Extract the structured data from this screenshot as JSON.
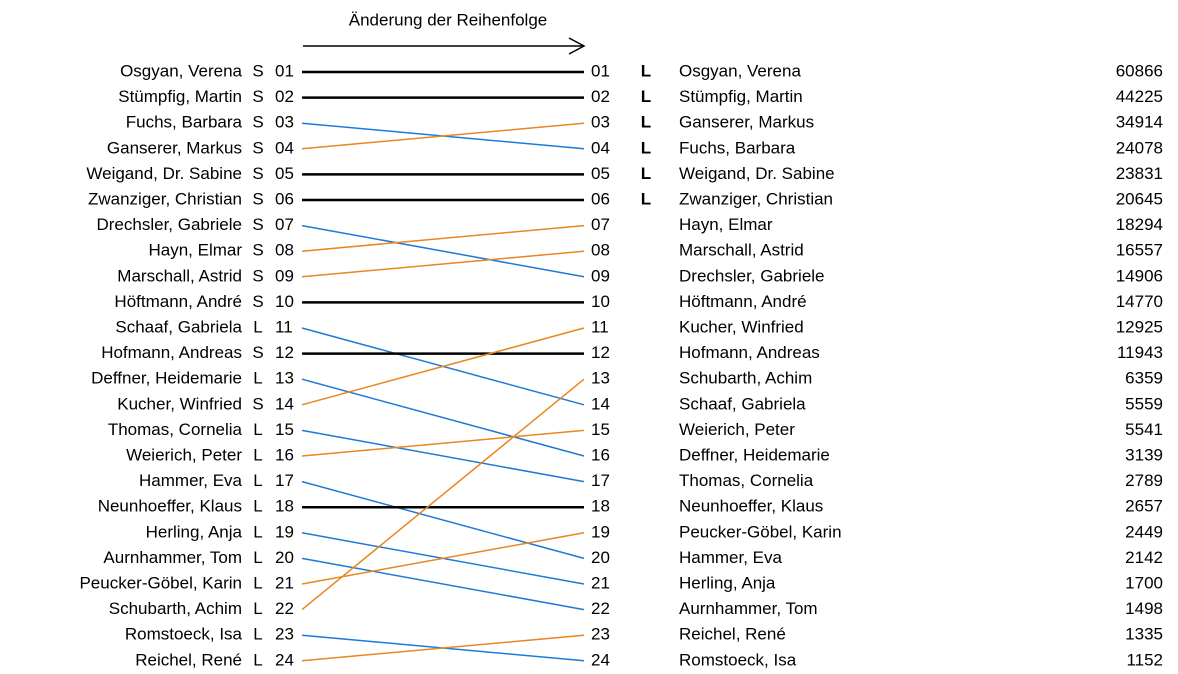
{
  "title": "Änderung der Reihenfolge",
  "colors": {
    "same": "#000000",
    "down": "#1f7ad6",
    "up": "#e8861f"
  },
  "left": [
    {
      "name": "Osgyan, Verena",
      "list": "S",
      "rank": "01"
    },
    {
      "name": "Stümpfig, Martin",
      "list": "S",
      "rank": "02"
    },
    {
      "name": "Fuchs, Barbara",
      "list": "S",
      "rank": "03"
    },
    {
      "name": "Ganserer, Markus",
      "list": "S",
      "rank": "04"
    },
    {
      "name": "Weigand, Dr. Sabine",
      "list": "S",
      "rank": "05"
    },
    {
      "name": "Zwanziger, Christian",
      "list": "S",
      "rank": "06"
    },
    {
      "name": "Drechsler, Gabriele",
      "list": "S",
      "rank": "07"
    },
    {
      "name": "Hayn, Elmar",
      "list": "S",
      "rank": "08"
    },
    {
      "name": "Marschall, Astrid",
      "list": "S",
      "rank": "09"
    },
    {
      "name": "Höftmann, André",
      "list": "S",
      "rank": "10"
    },
    {
      "name": "Schaaf, Gabriela",
      "list": "L",
      "rank": "11"
    },
    {
      "name": "Hofmann, Andreas",
      "list": "S",
      "rank": "12"
    },
    {
      "name": "Deffner, Heidemarie",
      "list": "L",
      "rank": "13"
    },
    {
      "name": "Kucher, Winfried",
      "list": "S",
      "rank": "14"
    },
    {
      "name": "Thomas, Cornelia",
      "list": "L",
      "rank": "15"
    },
    {
      "name": "Weierich, Peter",
      "list": "L",
      "rank": "16"
    },
    {
      "name": "Hammer, Eva",
      "list": "L",
      "rank": "17"
    },
    {
      "name": "Neunhoeffer, Klaus",
      "list": "L",
      "rank": "18"
    },
    {
      "name": "Herling, Anja",
      "list": "L",
      "rank": "19"
    },
    {
      "name": "Aurnhammer, Tom",
      "list": "L",
      "rank": "20"
    },
    {
      "name": "Peucker-Göbel, Karin",
      "list": "L",
      "rank": "21"
    },
    {
      "name": "Schubarth, Achim",
      "list": "L",
      "rank": "22"
    },
    {
      "name": "Romstoeck, Isa",
      "list": "L",
      "rank": "23"
    },
    {
      "name": "Reichel, René",
      "list": "L",
      "rank": "24"
    }
  ],
  "right": [
    {
      "rank": "01",
      "mark": "L",
      "name": "Osgyan, Verena",
      "votes": 60866
    },
    {
      "rank": "02",
      "mark": "L",
      "name": "Stümpfig, Martin",
      "votes": 44225
    },
    {
      "rank": "03",
      "mark": "L",
      "name": "Ganserer, Markus",
      "votes": 34914
    },
    {
      "rank": "04",
      "mark": "L",
      "name": "Fuchs, Barbara",
      "votes": 24078
    },
    {
      "rank": "05",
      "mark": "L",
      "name": "Weigand, Dr. Sabine",
      "votes": 23831
    },
    {
      "rank": "06",
      "mark": "L",
      "name": "Zwanziger, Christian",
      "votes": 20645
    },
    {
      "rank": "07",
      "name": "Hayn, Elmar",
      "votes": 18294
    },
    {
      "rank": "08",
      "name": "Marschall, Astrid",
      "votes": 16557
    },
    {
      "rank": "09",
      "name": "Drechsler, Gabriele",
      "votes": 14906
    },
    {
      "rank": "10",
      "name": "Höftmann, André",
      "votes": 14770
    },
    {
      "rank": "11",
      "name": "Kucher, Winfried",
      "votes": 12925
    },
    {
      "rank": "12",
      "name": "Hofmann, Andreas",
      "votes": 11943
    },
    {
      "rank": "13",
      "name": "Schubarth, Achim",
      "votes": 6359
    },
    {
      "rank": "14",
      "name": "Schaaf, Gabriela",
      "votes": 5559
    },
    {
      "rank": "15",
      "name": "Weierich, Peter",
      "votes": 5541
    },
    {
      "rank": "16",
      "name": "Deffner, Heidemarie",
      "votes": 3139
    },
    {
      "rank": "17",
      "name": "Thomas, Cornelia",
      "votes": 2789
    },
    {
      "rank": "18",
      "name": "Neunhoeffer, Klaus",
      "votes": 2657
    },
    {
      "rank": "19",
      "name": "Peucker-Göbel, Karin",
      "votes": 2449
    },
    {
      "rank": "20",
      "name": "Hammer, Eva",
      "votes": 2142
    },
    {
      "rank": "21",
      "name": "Herling, Anja",
      "votes": 1700
    },
    {
      "rank": "22",
      "name": "Aurnhammer, Tom",
      "votes": 1498
    },
    {
      "rank": "23",
      "name": "Reichel, René",
      "votes": 1335
    },
    {
      "rank": "24",
      "name": "Romstoeck, Isa",
      "votes": 1152
    }
  ]
}
